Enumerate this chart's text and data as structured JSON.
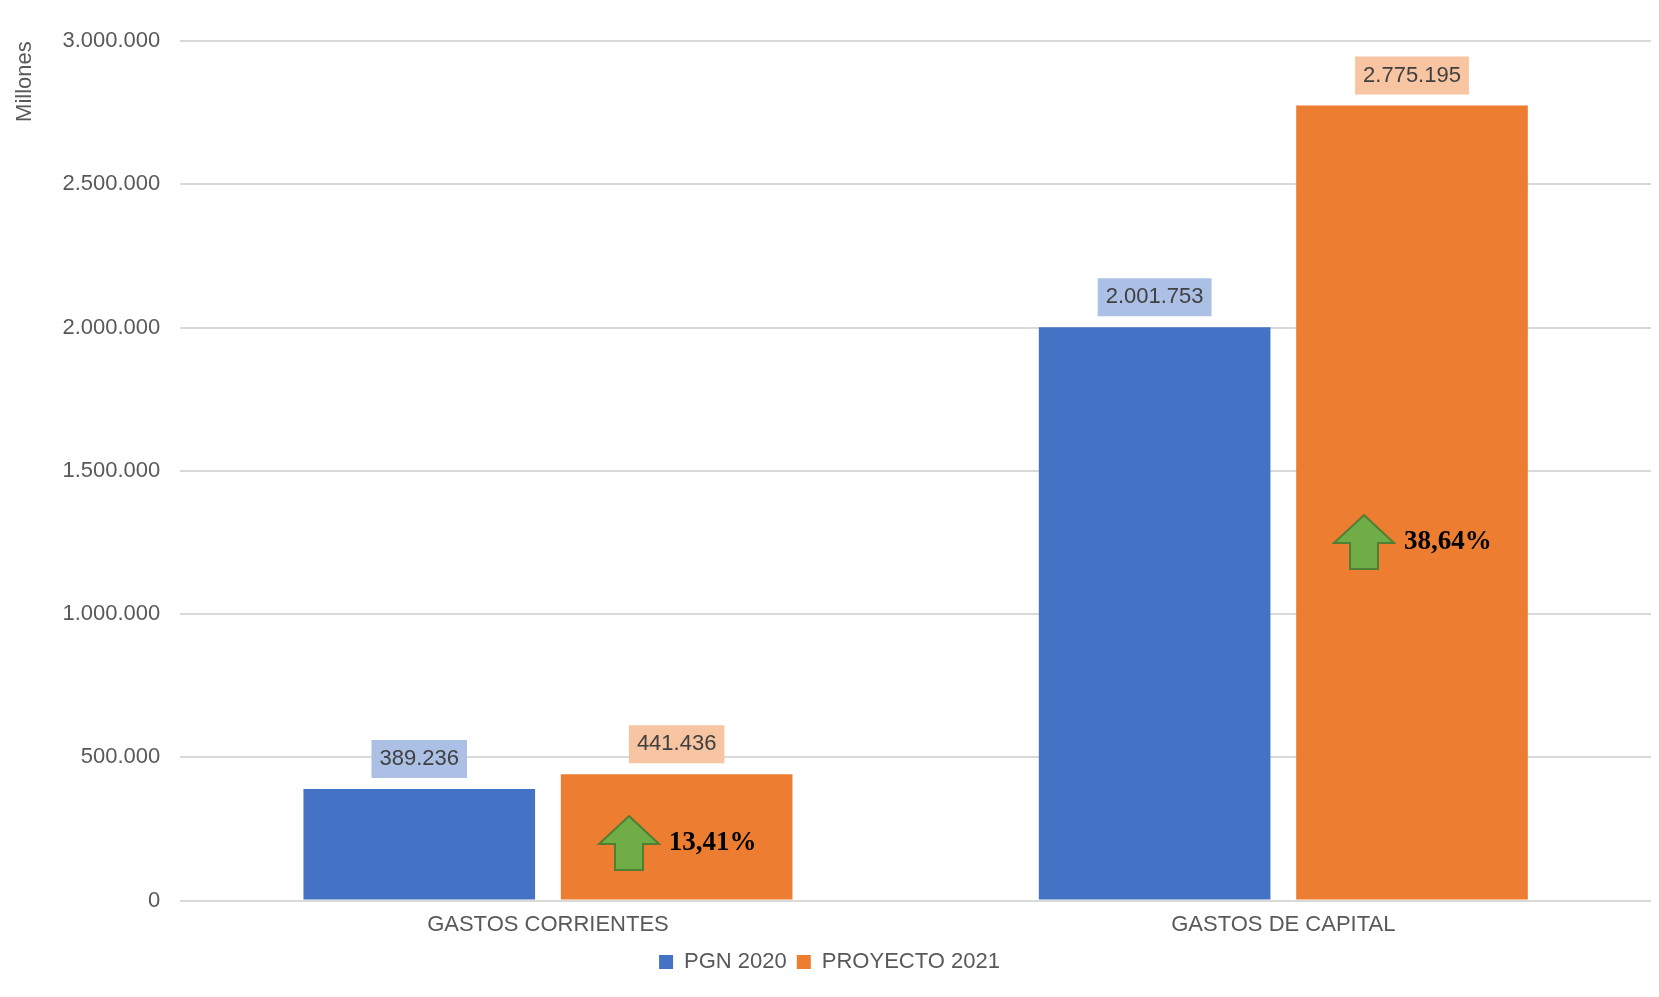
{
  "chart_data": {
    "type": "bar",
    "ylabel": "Millones",
    "categories": [
      "GASTOS CORRIENTES",
      "GASTOS DE CAPITAL"
    ],
    "series": [
      {
        "name": "PGN 2020",
        "color": "#4472c4",
        "values": [
          389236,
          2001753
        ],
        "value_labels": [
          "389.236",
          "2.001.753"
        ]
      },
      {
        "name": "PROYECTO 2021",
        "color": "#ed7d31",
        "values": [
          441436,
          2775195
        ],
        "value_labels": [
          "441.436",
          "2.775.195"
        ]
      }
    ],
    "ylim": [
      0,
      3000000
    ],
    "yticks": [
      {
        "value": 0,
        "label": "0"
      },
      {
        "value": 500000,
        "label": "500.000"
      },
      {
        "value": 1000000,
        "label": "1.000.000"
      },
      {
        "value": 1500000,
        "label": "1.500.000"
      },
      {
        "value": 2000000,
        "label": "2.000.000"
      },
      {
        "value": 2500000,
        "label": "2.500.000"
      },
      {
        "value": 3000000,
        "label": "3.000.000"
      }
    ],
    "grid": "y",
    "legend": "bottom",
    "annotations": [
      "13,41%",
      "38,64%"
    ]
  }
}
